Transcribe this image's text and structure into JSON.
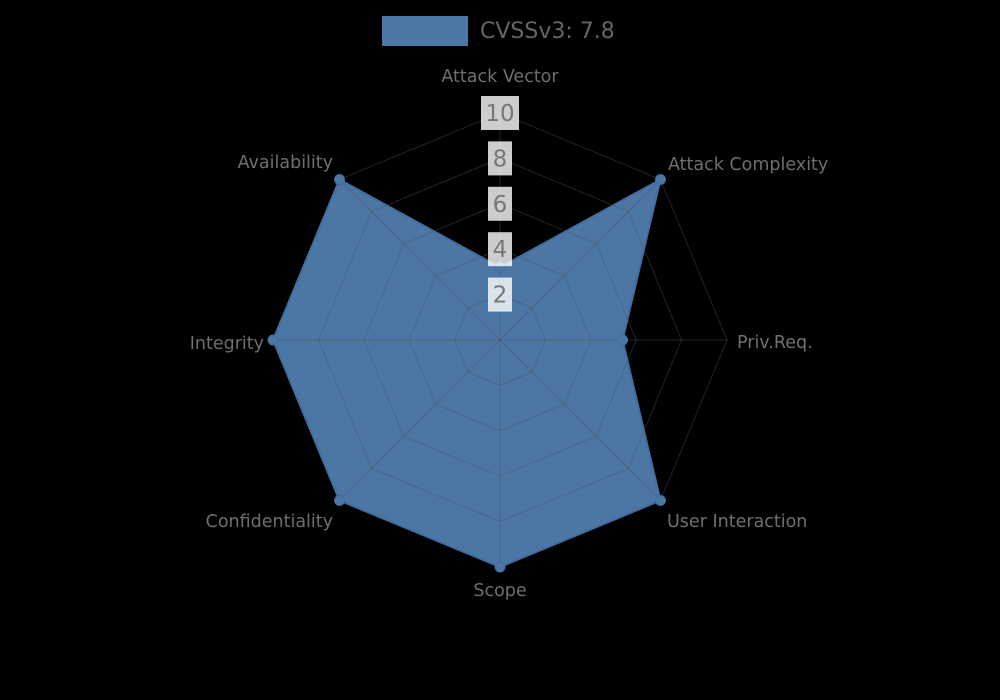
{
  "chart_data": {
    "type": "radar",
    "legend_label": "CVSSv3: 7.8",
    "axes": [
      "Attack Vector",
      "Attack Complexity",
      "Priv.Req.",
      "User Interaction",
      "Scope",
      "Confidentiality",
      "Integrity",
      "Availability"
    ],
    "series": [
      {
        "name": "CVSSv3: 7.8",
        "values": [
          3.2,
          10,
          5.4,
          10,
          10,
          10,
          10,
          10
        ]
      }
    ],
    "scale": {
      "min": 0,
      "max": 10,
      "ticks": [
        2,
        4,
        6,
        8,
        10
      ]
    },
    "grid": {
      "shape": "octagonal-web",
      "rings": 5,
      "spokes": 8
    },
    "legend_position": "top-center",
    "colors": {
      "fill": "#4c77a5",
      "edge": "#426d9c",
      "grid_line": "rgba(70,82,95,0.38)",
      "background": "#000000",
      "tick_box": "rgba(255,255,255,0.8)",
      "tick_text": "#777777",
      "axis_label": "#6f6f6f",
      "legend_text": "#666666"
    }
  }
}
